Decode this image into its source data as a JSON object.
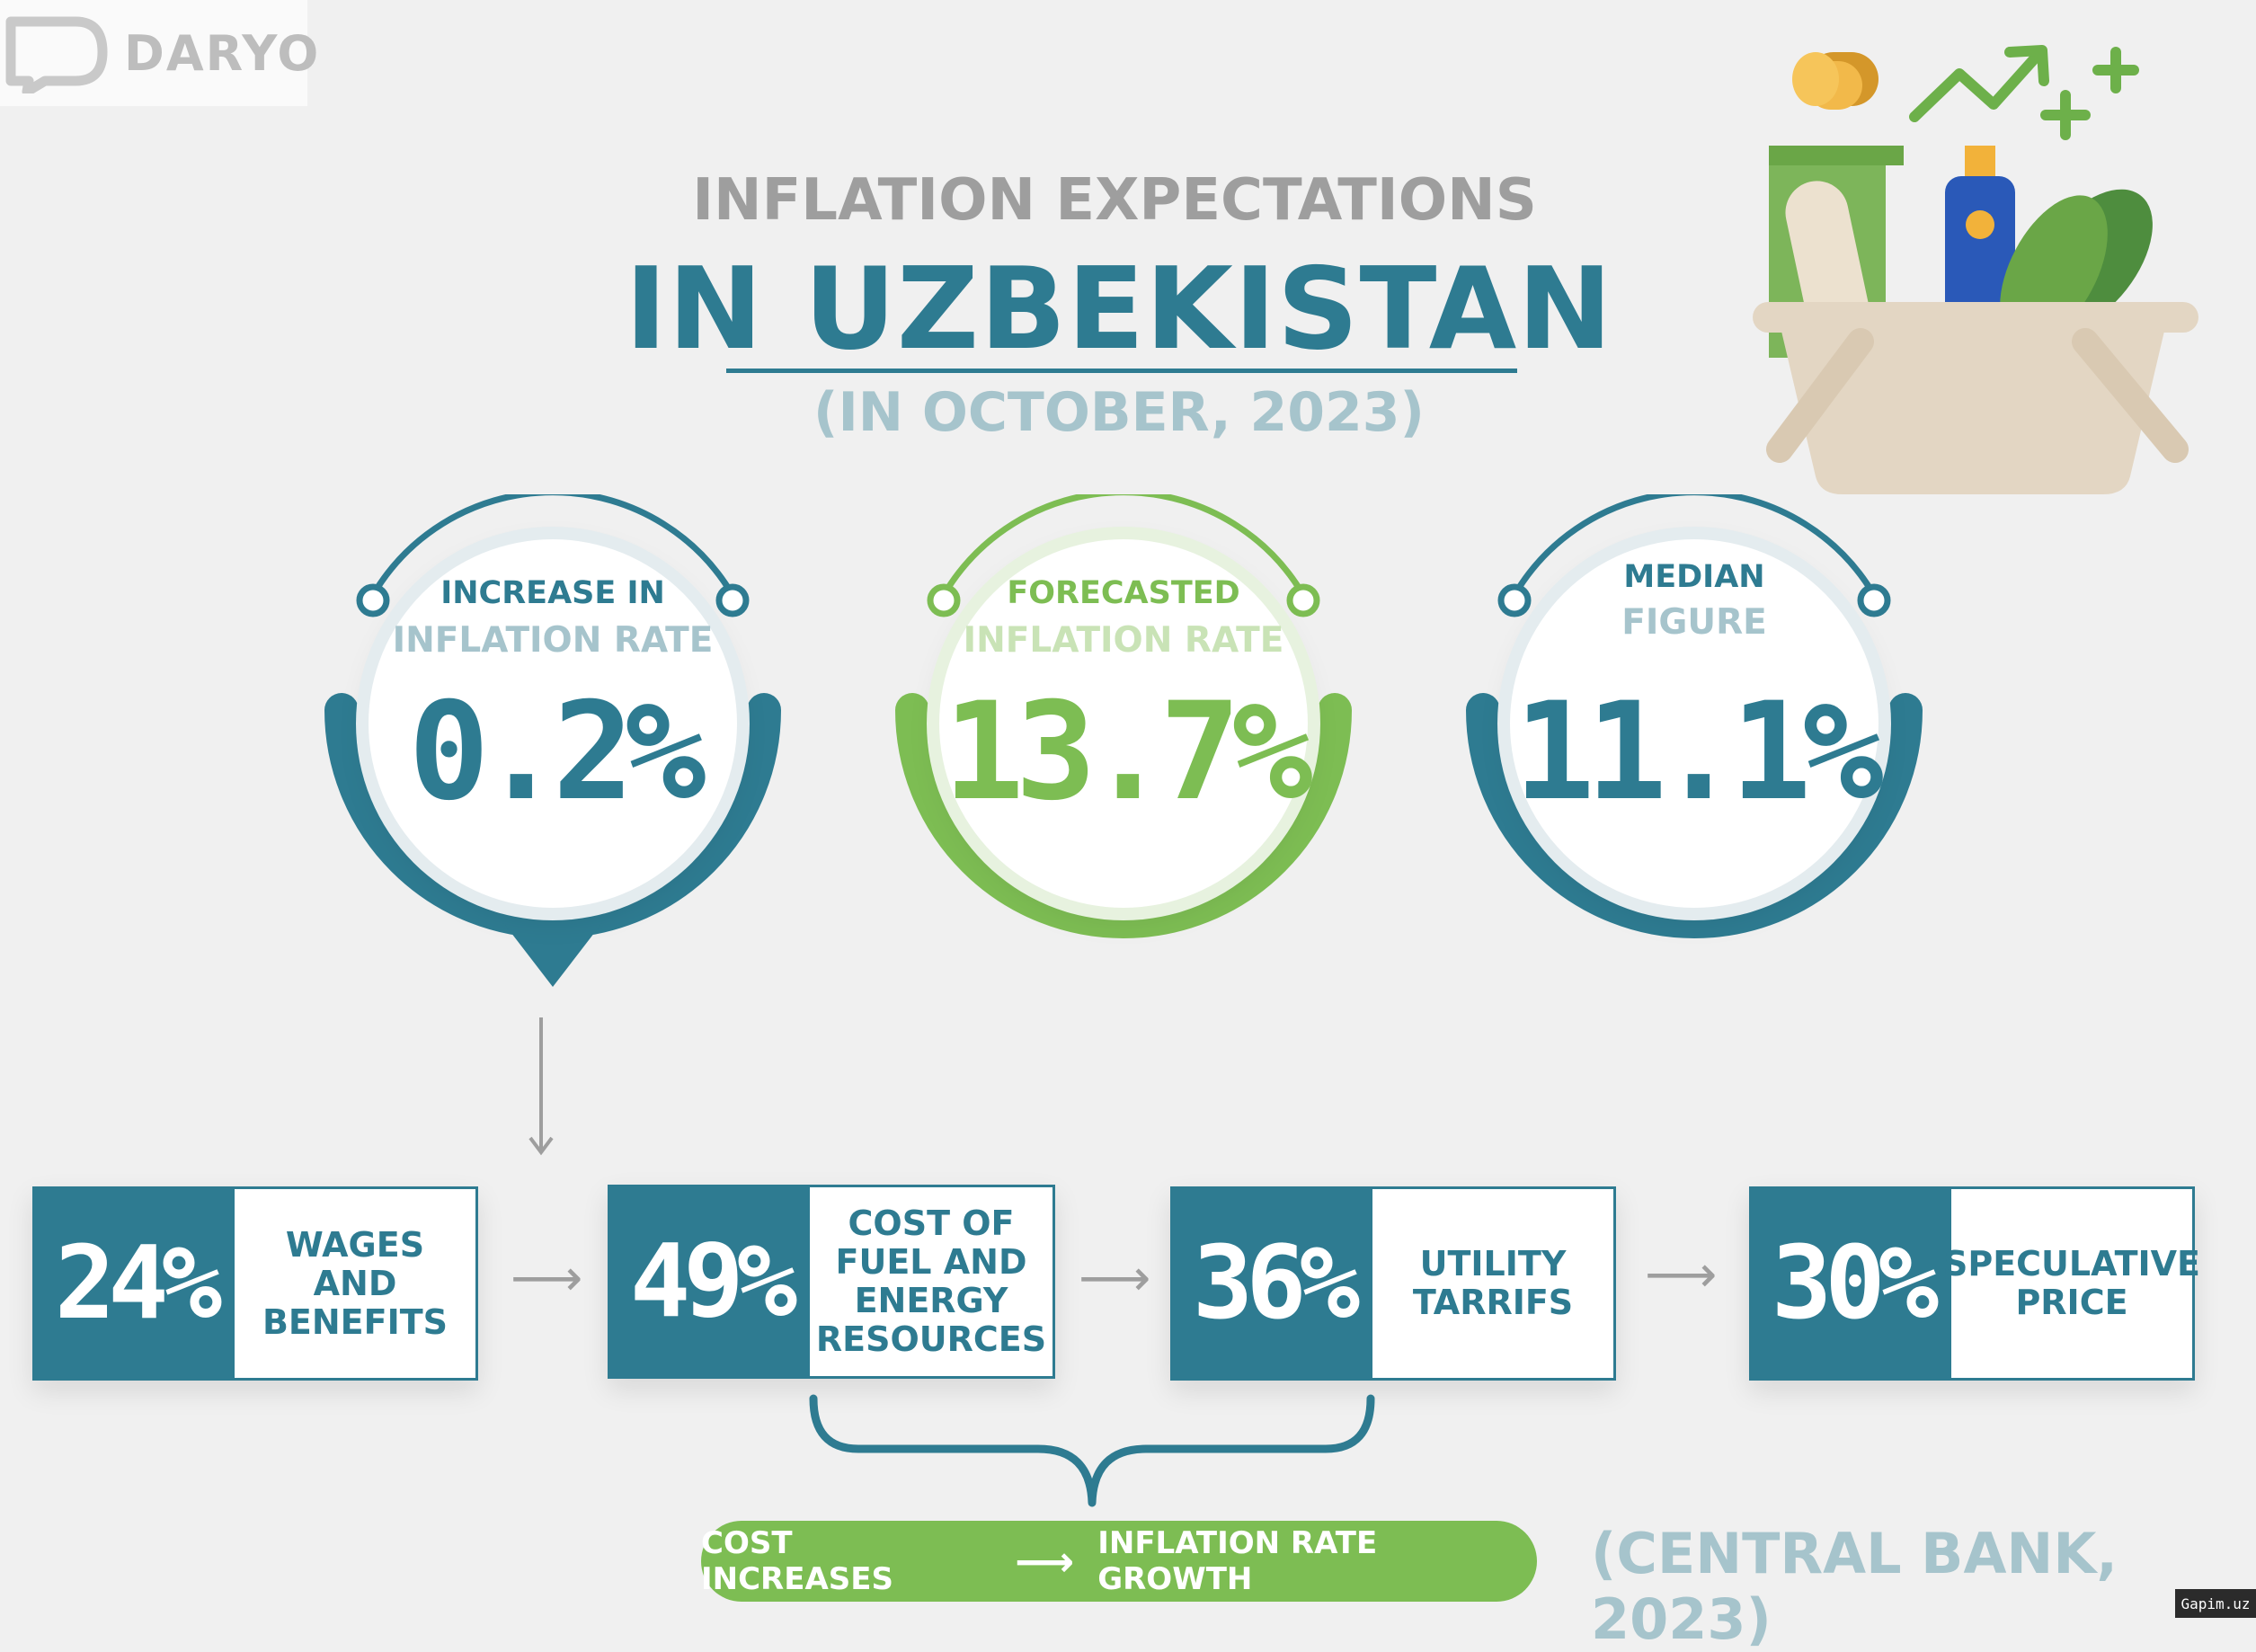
{
  "logo": {
    "text": "DARYO"
  },
  "title": {
    "line1": "INFLATION EXPECTATIONS",
    "line2": "IN UZBEKISTAN",
    "line3": "(IN OCTOBER, 2023)"
  },
  "stats": [
    {
      "label_top": "INCREASE IN",
      "label_bottom": "INFLATION RATE",
      "value": "0.2%",
      "color": "#2e7b91"
    },
    {
      "label_top": "FORECASTED",
      "label_bottom": "INFLATION RATE",
      "value": "13.7%",
      "color": "#7dbd53"
    },
    {
      "label_top": "MEDIAN",
      "label_bottom": "FIGURE",
      "value": "11.1%",
      "color": "#2e7b91"
    }
  ],
  "factors": [
    {
      "percent": "24%",
      "label": "WAGES AND BENEFITS"
    },
    {
      "percent": "49%",
      "label": "COST OF FUEL AND ENERGY RESOURCES"
    },
    {
      "percent": "36%",
      "label": "UTILITY TARRIFS"
    },
    {
      "percent": "30%",
      "label": "SPECULATIVE PRICE"
    }
  ],
  "conclusion": {
    "left": "COST INCREASES",
    "arrow": "⟶",
    "right": "INFLATION RATE GROWTH"
  },
  "source": "(CENTRAL BANK, 2023)",
  "watermark": "Gapim.uz",
  "colors": {
    "teal": "#2e7b91",
    "green": "#7dbd53",
    "light_teal": "#a6c4cc",
    "grey": "#9e9e9e"
  },
  "icons": [
    "chat-bubble-icon",
    "shopping-basket-icon",
    "coins-icon",
    "trend-up-arrow-icon",
    "plus-icon"
  ]
}
